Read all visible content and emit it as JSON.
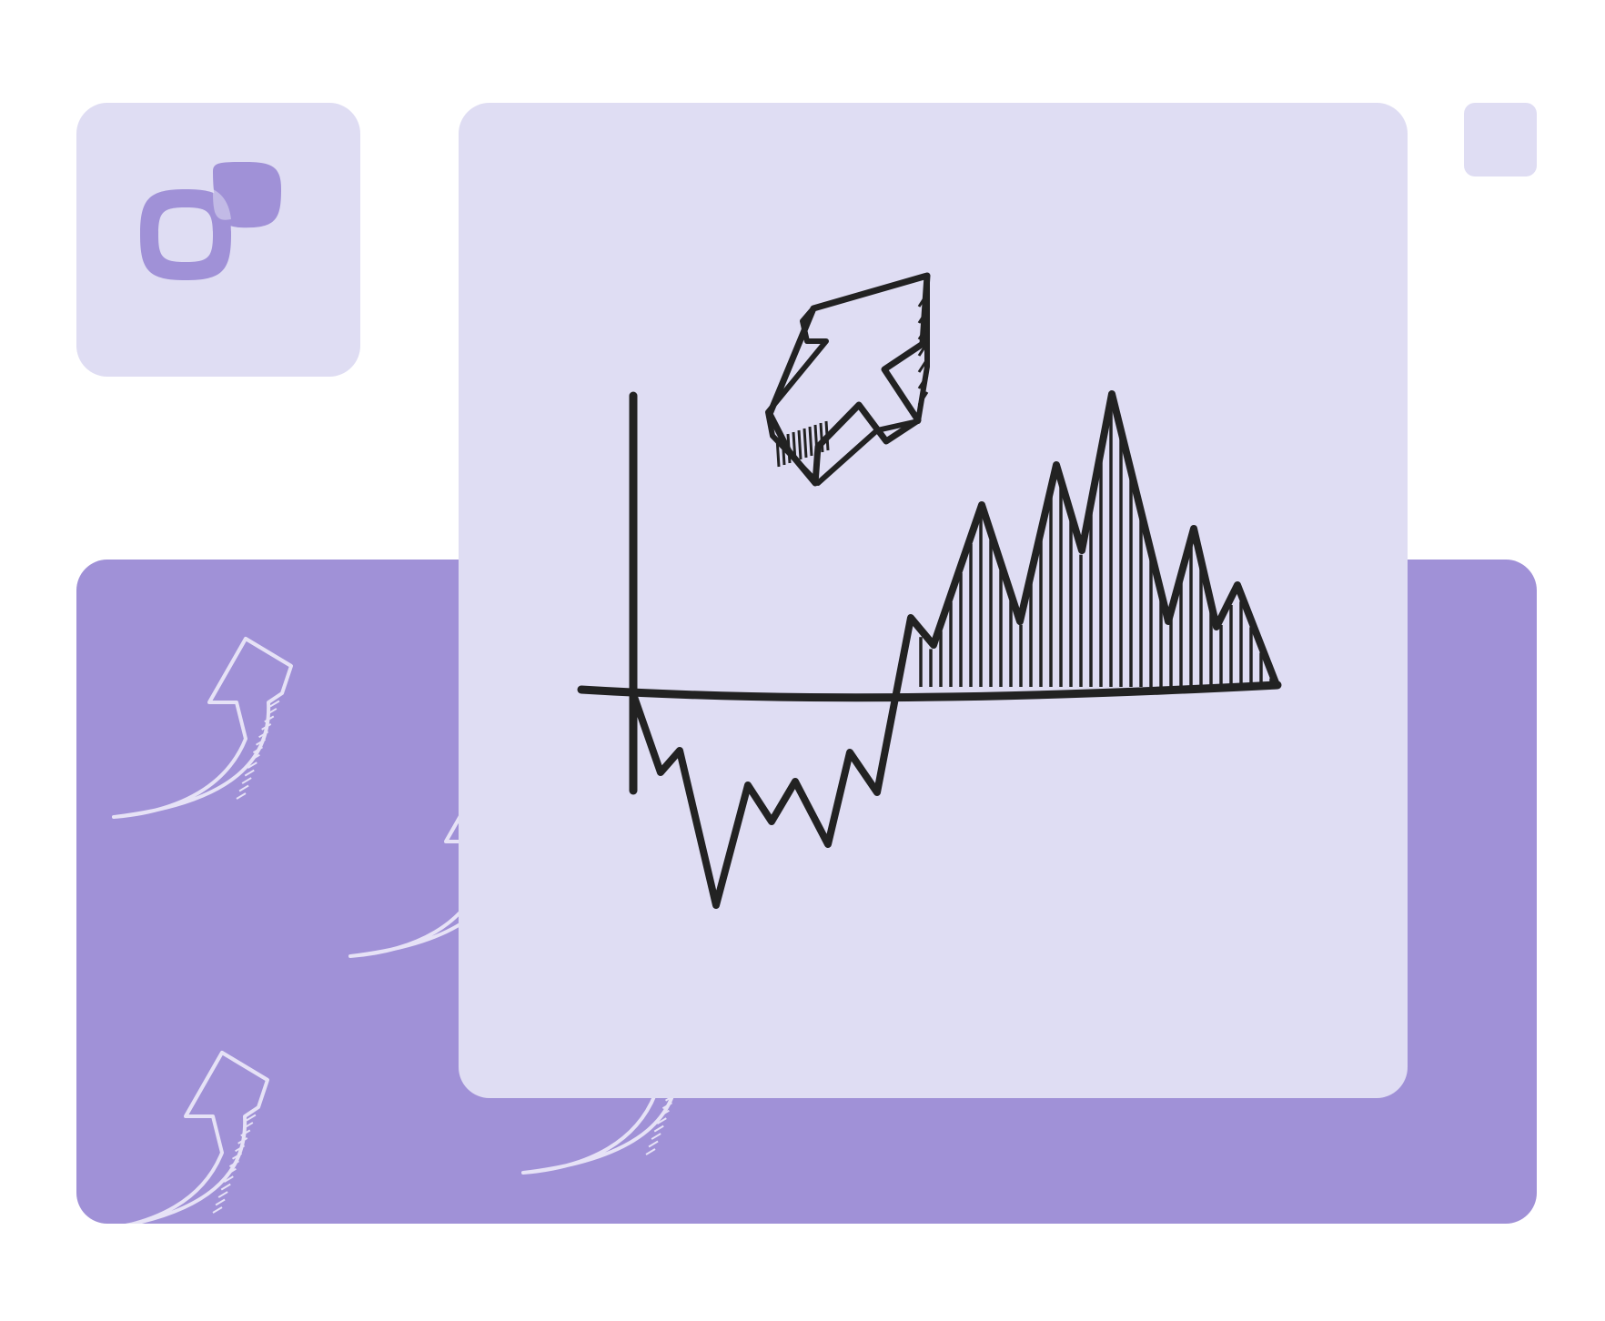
{
  "colors": {
    "page_background": "#ffffff",
    "light_panel": "#dfddf3",
    "accent_panel": "#a091d7",
    "sketch_ink": "#222222",
    "decor_arrow": "#e6e2f6"
  },
  "icons": {
    "logo": "overlapping-rounded-squares-logo-icon",
    "trend_arrow": "up-right-arrow-icon",
    "sketch_graph": "fluctuating-line-graph-icon",
    "decor_arrows": [
      "curved-up-arrow-icon",
      "curved-up-arrow-icon",
      "curved-up-arrow-icon",
      "curved-up-arrow-icon"
    ]
  }
}
